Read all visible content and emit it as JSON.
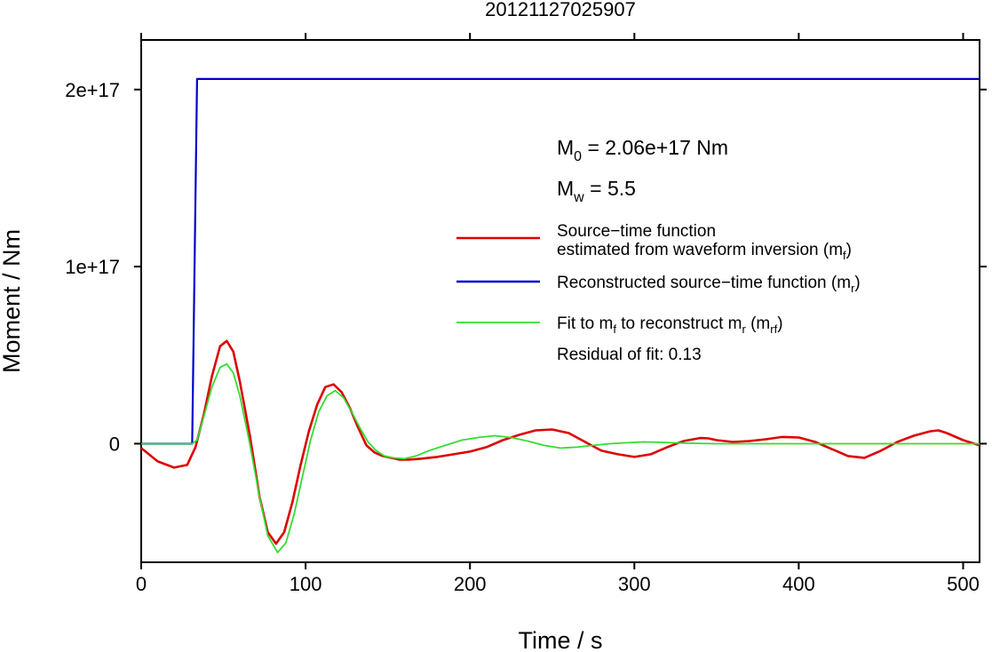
{
  "chart_data": {
    "type": "line",
    "title": "20121127025907",
    "xlabel": "Time / s",
    "ylabel": "Moment / Nm",
    "xlim": [
      0,
      510
    ],
    "ylim": [
      -6.7e+16,
      2.28e+17
    ],
    "x_ticks": [
      0,
      100,
      200,
      300,
      400,
      500
    ],
    "x_tick_labels": [
      "0",
      "100",
      "200",
      "300",
      "400",
      "500"
    ],
    "y_ticks": [
      0,
      1e+17,
      2e+17
    ],
    "y_tick_labels": [
      "0",
      "1e+17",
      "2e+17"
    ],
    "grid": false,
    "legend_position": "right",
    "annotations": {
      "m0_prefix": "M",
      "m0_sub": "0",
      "m0_rest": " = 2.06e+17 Nm",
      "mw_prefix": "M",
      "mw_sub": "w",
      "mw_rest": " = 5.5",
      "residual": "Residual of fit: 0.13"
    },
    "legend": [
      {
        "line1": "Source−time function",
        "line2_pre": "estimated from waveform inversion (m",
        "line2_sub": "f",
        "line2_post": ")",
        "color": "#dd0000"
      },
      {
        "pre": "Reconstructed source−time function (m",
        "sub": "r",
        "post": ")",
        "color": "#0000cc"
      },
      {
        "pre": "Fit to m",
        "sub1": "f",
        "mid": " to reconstruct m",
        "sub2": "r",
        "mid2": " (m",
        "sub3": "rf",
        "post": ")",
        "color": "#33dd33"
      }
    ],
    "series": [
      {
        "color": "#0000cc",
        "x": [
          0,
          31,
          34,
          510
        ],
        "y": [
          0,
          0,
          2.06e+17,
          2.06e+17
        ]
      },
      {
        "color": "#dd0000",
        "x": [
          0,
          10,
          20,
          28,
          33,
          38,
          43,
          48,
          52,
          56,
          60,
          66,
          72,
          77,
          82,
          87,
          92,
          97,
          102,
          107,
          112,
          117,
          122,
          127,
          132,
          137,
          142,
          147,
          152,
          157,
          163,
          170,
          180,
          190,
          200,
          210,
          220,
          230,
          240,
          250,
          260,
          270,
          280,
          290,
          300,
          310,
          320,
          330,
          340,
          345,
          350,
          360,
          370,
          380,
          390,
          400,
          410,
          420,
          430,
          440,
          450,
          460,
          470,
          480,
          485,
          490,
          500,
          510
        ],
        "y": [
          -2500000000000000.0,
          -1e+16,
          -1.35e+16,
          -1.2e+16,
          -2000000000000000.0,
          1.6e+16,
          3.8e+16,
          5.5e+16,
          5.8e+16,
          5.2e+16,
          3.5e+16,
          5000000000000000.0,
          -3e+16,
          -5e+16,
          -5.65e+16,
          -5e+16,
          -3.3e+16,
          -1.2e+16,
          7000000000000000.0,
          2.2e+16,
          3.2e+16,
          3.35e+16,
          2.9e+16,
          2e+16,
          9000000000000000.0,
          -1000000000000000.0,
          -5000000000000000.0,
          -7000000000000000.0,
          -8000000000000000.0,
          -9000000000000000.0,
          -9000000000000000.0,
          -8500000000000000.0,
          -7500000000000000.0,
          -6000000000000000.0,
          -4500000000000000.0,
          -2000000000000000.0,
          2000000000000000.0,
          5000000000000000.0,
          7500000000000000.0,
          8000000000000000.0,
          6000000000000000.0,
          1000000000000000.0,
          -4000000000000000.0,
          -6000000000000000.0,
          -7500000000000000.0,
          -6000000000000000.0,
          -2000000000000000.0,
          1500000000000000.0,
          3200000000000000.0,
          3000000000000000.0,
          2000000000000000.0,
          1000000000000000.0,
          1500000000000000.0,
          2500000000000000.0,
          3800000000000000.0,
          3500000000000000.0,
          1000000000000000.0,
          -3000000000000000.0,
          -7000000000000000.0,
          -8000000000000000.0,
          -4000000000000000.0,
          1000000000000000.0,
          4500000000000000.0,
          7000000000000000.0,
          7500000000000000.0,
          6000000000000000.0,
          2000000000000000.0,
          -1000000000000000.0
        ]
      },
      {
        "color": "#33dd33",
        "x": [
          0,
          31,
          34,
          38,
          43,
          48,
          52,
          56,
          60,
          66,
          72,
          77,
          83,
          88,
          93,
          98,
          103,
          108,
          113,
          118,
          123,
          128,
          133,
          138,
          143,
          148,
          153,
          160,
          167,
          175,
          185,
          195,
          205,
          215,
          225,
          235,
          245,
          255,
          265,
          275,
          285,
          295,
          305,
          315,
          330,
          350,
          380,
          420,
          460,
          510
        ],
        "y": [
          0,
          0,
          2000000000000000.0,
          1.5e+16,
          3.2e+16,
          4.3e+16,
          4.5e+16,
          4e+16,
          2.7e+16,
          0,
          -3e+16,
          -5.2e+16,
          -6.15e+16,
          -5.6e+16,
          -4e+16,
          -1.9e+16,
          2000000000000000.0,
          1.8e+16,
          2.7e+16,
          3e+16,
          2.6e+16,
          1.8e+16,
          9000000000000000.0,
          1000000000000000.0,
          -4000000000000000.0,
          -7000000000000000.0,
          -8000000000000000.0,
          -8500000000000000.0,
          -7000000000000000.0,
          -4000000000000000.0,
          -1000000000000000.0,
          2000000000000000.0,
          3500000000000000.0,
          4500000000000000.0,
          3500000000000000.0,
          1500000000000000.0,
          -1000000000000000.0,
          -2500000000000000.0,
          -2000000000000000.0,
          -1000000000000000.0,
          0,
          500000000000000.0,
          1000000000000000.0,
          800000000000000.0,
          300000000000000.0,
          0,
          0,
          0,
          0,
          0
        ]
      }
    ]
  }
}
